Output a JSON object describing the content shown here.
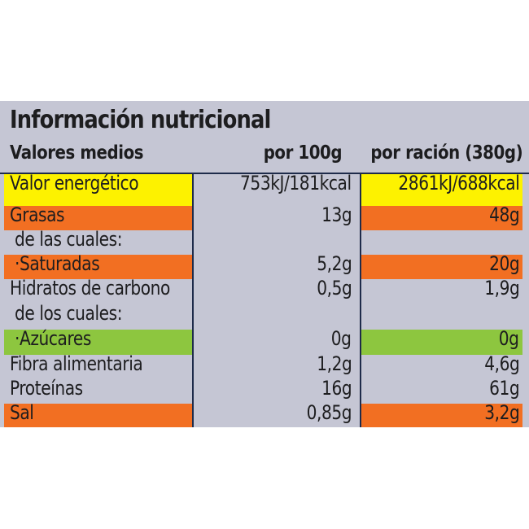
{
  "title": "Información nutricional",
  "header": {
    "label": "Valores medios",
    "col1": "por 100g",
    "col2": "por ración (380g)"
  },
  "colors": {
    "panel": "#c5c6d4",
    "yellow": "#fdf200",
    "orange": "#f26f22",
    "green": "#8dc63f",
    "lines": "#1e2b4a"
  },
  "rows": [
    {
      "label": "Valor energético",
      "per100": "753kJ/181kcal",
      "perServing": "2861kJ/688kcal",
      "highlight": "yellow"
    },
    {
      "label": "Grasas",
      "per100": "13g",
      "perServing": "48g",
      "highlight": "orange"
    },
    {
      "label": " de las cuales:",
      "per100": "",
      "perServing": "",
      "highlight": "none"
    },
    {
      "label": " ·Saturadas",
      "per100": "5,2g",
      "perServing": "20g",
      "highlight": "orange"
    },
    {
      "label": "Hidratos de carbono",
      "per100": "0,5g",
      "perServing": "1,9g",
      "highlight": "none"
    },
    {
      "label": " de los cuales:",
      "per100": "",
      "perServing": "",
      "highlight": "none"
    },
    {
      "label": " ·Azúcares",
      "per100": "0g",
      "perServing": "0g",
      "highlight": "green"
    },
    {
      "label": "Fibra alimentaria",
      "per100": "1,2g",
      "perServing": "4,6g",
      "highlight": "none"
    },
    {
      "label": "Proteínas",
      "per100": "16g",
      "perServing": "61g",
      "highlight": "none"
    },
    {
      "label": "Sal",
      "per100": "0,85g",
      "perServing": "3,2g",
      "highlight": "orange"
    }
  ]
}
